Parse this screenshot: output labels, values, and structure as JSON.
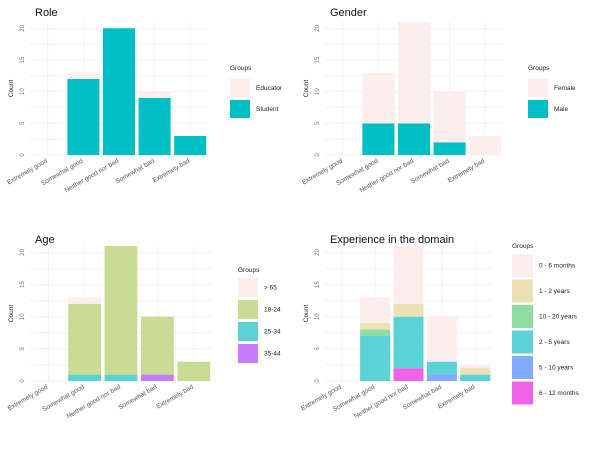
{
  "chart_data": [
    {
      "type": "bar",
      "stacked": true,
      "title": "Role",
      "xlabel": "",
      "ylabel": "Count",
      "categories": [
        "Extremely good",
        "Somewhat good",
        "Neither good nor bad",
        "Somewhat bad",
        "Extremely bad"
      ],
      "ylim": [
        0,
        21
      ],
      "yticks": [
        0,
        5,
        10,
        15,
        20
      ],
      "legend_title": "Groups",
      "legend_position": "right",
      "series": [
        {
          "name": "Educator",
          "color": "#fdeeee",
          "values": [
            0,
            1,
            0,
            1,
            0
          ]
        },
        {
          "name": "Student",
          "color": "#00bfc4",
          "values": [
            0,
            12,
            20,
            9,
            3
          ]
        }
      ]
    },
    {
      "type": "bar",
      "stacked": true,
      "title": "Gender",
      "xlabel": "",
      "ylabel": "Count",
      "categories": [
        "Extremely good",
        "Somewhat good",
        "Neither good nor bad",
        "Somewhat bad",
        "Extremely bad"
      ],
      "ylim": [
        0,
        21
      ],
      "yticks": [
        0,
        5,
        10,
        15,
        20
      ],
      "legend_title": "Groups",
      "legend_position": "right",
      "series": [
        {
          "name": "Female",
          "color": "#fdeeee",
          "values": [
            0,
            8,
            16,
            8,
            3
          ]
        },
        {
          "name": "Male",
          "color": "#00bfc4",
          "values": [
            0,
            5,
            5,
            2,
            0
          ]
        }
      ]
    },
    {
      "type": "bar",
      "stacked": true,
      "title": "Age",
      "xlabel": "",
      "ylabel": "Count",
      "categories": [
        "Extremely good",
        "Somewhat good",
        "Neither good nor bad",
        "Somewhat bad",
        "Extremely bad"
      ],
      "ylim": [
        0,
        21
      ],
      "yticks": [
        0,
        5,
        10,
        15,
        20
      ],
      "legend_title": "Groups",
      "legend_position": "right",
      "series": [
        {
          "name": "> 65",
          "color": "#fdeeee",
          "values": [
            0,
            1,
            0,
            0,
            0
          ]
        },
        {
          "name": "18-24",
          "color": "#c9dc94",
          "values": [
            0,
            11,
            20,
            9,
            3
          ]
        },
        {
          "name": "25-34",
          "color": "#5bd3d6",
          "values": [
            0,
            1,
            1,
            0,
            0
          ]
        },
        {
          "name": "35-44",
          "color": "#c77cff",
          "values": [
            0,
            0,
            0,
            1,
            0
          ]
        }
      ]
    },
    {
      "type": "bar",
      "stacked": true,
      "title": "Experience in the domain",
      "xlabel": "",
      "ylabel": "Count",
      "categories": [
        "Extremely good",
        "Somewhat good",
        "Neither good nor bad",
        "Somewhat bad",
        "Extremely bad"
      ],
      "ylim": [
        0,
        21
      ],
      "yticks": [
        0,
        5,
        10,
        15,
        20
      ],
      "legend_title": "Groups",
      "legend_position": "top-right",
      "series": [
        {
          "name": "0 - 6 months",
          "color": "#fdeeee",
          "values": [
            0,
            4,
            9,
            7,
            0.5
          ]
        },
        {
          "name": "1 - 2 years",
          "color": "#ebe1b4",
          "values": [
            0,
            1,
            2,
            0,
            1
          ]
        },
        {
          "name": "10 - 20 years",
          "color": "#8fdca6",
          "values": [
            0,
            1,
            0,
            0,
            0
          ]
        },
        {
          "name": "2 - 5 years",
          "color": "#5bd3d6",
          "values": [
            0,
            7,
            8,
            2,
            1
          ]
        },
        {
          "name": "5 - 10 years",
          "color": "#82aaff",
          "values": [
            0,
            0,
            0,
            1,
            0
          ]
        },
        {
          "name": "6 - 12 months",
          "color": "#f163e6",
          "values": [
            0,
            0,
            2,
            0,
            0
          ]
        }
      ]
    }
  ]
}
